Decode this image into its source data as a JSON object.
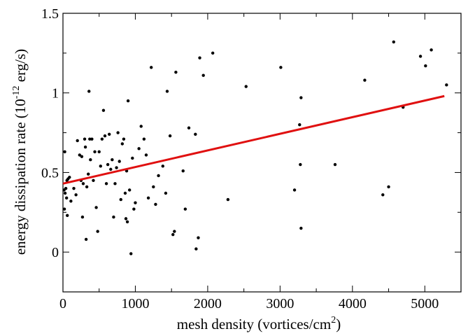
{
  "chart_data": {
    "type": "scatter",
    "title": "",
    "xlabel_prefix": "mesh density (vortices/cm",
    "xlabel_sup": "2",
    "xlabel_suffix": ")",
    "ylabel_prefix": "energy dissipation rate (10",
    "ylabel_sup": "-12",
    "ylabel_suffix": " erg/s)",
    "xlim": [
      0,
      5500
    ],
    "ylim": [
      -0.25,
      1.5
    ],
    "x_ticks": [
      0,
      1000,
      2000,
      3000,
      4000,
      5000
    ],
    "x_tick_labels": [
      "0",
      "1000",
      "2000",
      "3000",
      "4000",
      "5000"
    ],
    "y_ticks": [
      0,
      0.5,
      1,
      1.5
    ],
    "y_tick_labels": [
      "0",
      "0.5",
      "1",
      "1.5"
    ],
    "grid": false,
    "marker_color": "#000000",
    "fit_color": "#e01010",
    "fit_line": {
      "x": [
        0,
        5270
      ],
      "y": [
        0.43,
        0.98
      ]
    },
    "points": [
      {
        "x": 25,
        "y": 0.63
      },
      {
        "x": 15,
        "y": 0.39
      },
      {
        "x": 30,
        "y": 0.37
      },
      {
        "x": 40,
        "y": 0.4
      },
      {
        "x": 20,
        "y": 0.27
      },
      {
        "x": 55,
        "y": 0.45
      },
      {
        "x": 50,
        "y": 0.34
      },
      {
        "x": 60,
        "y": 0.23
      },
      {
        "x": 70,
        "y": 0.46
      },
      {
        "x": 90,
        "y": 0.47
      },
      {
        "x": 110,
        "y": 0.32
      },
      {
        "x": 150,
        "y": 0.4
      },
      {
        "x": 180,
        "y": 0.36
      },
      {
        "x": 200,
        "y": 0.7
      },
      {
        "x": 230,
        "y": 0.61
      },
      {
        "x": 250,
        "y": 0.45
      },
      {
        "x": 260,
        "y": 0.6
      },
      {
        "x": 270,
        "y": 0.22
      },
      {
        "x": 280,
        "y": 0.43
      },
      {
        "x": 300,
        "y": 0.71
      },
      {
        "x": 310,
        "y": 0.66
      },
      {
        "x": 320,
        "y": 0.08
      },
      {
        "x": 330,
        "y": 0.41
      },
      {
        "x": 350,
        "y": 0.49
      },
      {
        "x": 360,
        "y": 1.01
      },
      {
        "x": 370,
        "y": 0.71
      },
      {
        "x": 380,
        "y": 0.58
      },
      {
        "x": 400,
        "y": 0.71
      },
      {
        "x": 420,
        "y": 0.45
      },
      {
        "x": 440,
        "y": 0.63
      },
      {
        "x": 460,
        "y": 0.28
      },
      {
        "x": 480,
        "y": 0.13
      },
      {
        "x": 500,
        "y": 0.63
      },
      {
        "x": 520,
        "y": 0.54
      },
      {
        "x": 540,
        "y": 0.71
      },
      {
        "x": 560,
        "y": 0.89
      },
      {
        "x": 580,
        "y": 0.73
      },
      {
        "x": 600,
        "y": 0.43
      },
      {
        "x": 620,
        "y": 0.55
      },
      {
        "x": 640,
        "y": 0.74
      },
      {
        "x": 660,
        "y": 0.52
      },
      {
        "x": 680,
        "y": 0.58
      },
      {
        "x": 700,
        "y": 0.22
      },
      {
        "x": 720,
        "y": 0.43
      },
      {
        "x": 740,
        "y": 0.53
      },
      {
        "x": 760,
        "y": 0.75
      },
      {
        "x": 780,
        "y": 0.57
      },
      {
        "x": 800,
        "y": 0.33
      },
      {
        "x": 820,
        "y": 0.68
      },
      {
        "x": 840,
        "y": 0.71
      },
      {
        "x": 860,
        "y": 0.37
      },
      {
        "x": 870,
        "y": 0.21
      },
      {
        "x": 880,
        "y": 0.51
      },
      {
        "x": 890,
        "y": 0.19
      },
      {
        "x": 900,
        "y": 0.95
      },
      {
        "x": 920,
        "y": 0.39
      },
      {
        "x": 940,
        "y": -0.01
      },
      {
        "x": 960,
        "y": 0.59
      },
      {
        "x": 980,
        "y": 0.27
      },
      {
        "x": 1000,
        "y": 0.31
      },
      {
        "x": 1050,
        "y": 0.65
      },
      {
        "x": 1080,
        "y": 0.79
      },
      {
        "x": 1120,
        "y": 0.71
      },
      {
        "x": 1150,
        "y": 0.61
      },
      {
        "x": 1180,
        "y": 0.34
      },
      {
        "x": 1220,
        "y": 1.16
      },
      {
        "x": 1250,
        "y": 0.41
      },
      {
        "x": 1280,
        "y": 0.3
      },
      {
        "x": 1320,
        "y": 0.48
      },
      {
        "x": 1380,
        "y": 0.54
      },
      {
        "x": 1420,
        "y": 0.37
      },
      {
        "x": 1440,
        "y": 1.01
      },
      {
        "x": 1480,
        "y": 0.73
      },
      {
        "x": 1520,
        "y": 0.11
      },
      {
        "x": 1540,
        "y": 0.13
      },
      {
        "x": 1560,
        "y": 1.13
      },
      {
        "x": 1660,
        "y": 0.51
      },
      {
        "x": 1690,
        "y": 0.27
      },
      {
        "x": 1740,
        "y": 0.78
      },
      {
        "x": 1830,
        "y": 0.74
      },
      {
        "x": 1840,
        "y": 0.02
      },
      {
        "x": 1870,
        "y": 0.09
      },
      {
        "x": 1890,
        "y": 1.22
      },
      {
        "x": 1940,
        "y": 1.11
      },
      {
        "x": 2070,
        "y": 1.25
      },
      {
        "x": 2280,
        "y": 0.33
      },
      {
        "x": 2530,
        "y": 1.04
      },
      {
        "x": 3010,
        "y": 1.16
      },
      {
        "x": 3200,
        "y": 0.39
      },
      {
        "x": 3270,
        "y": 0.8
      },
      {
        "x": 3280,
        "y": 0.55
      },
      {
        "x": 3290,
        "y": 0.97
      },
      {
        "x": 3290,
        "y": 0.15
      },
      {
        "x": 3760,
        "y": 0.55
      },
      {
        "x": 4170,
        "y": 1.08
      },
      {
        "x": 4420,
        "y": 0.36
      },
      {
        "x": 4500,
        "y": 0.41
      },
      {
        "x": 4570,
        "y": 1.32
      },
      {
        "x": 4940,
        "y": 1.23
      },
      {
        "x": 5010,
        "y": 1.17
      },
      {
        "x": 5090,
        "y": 1.27
      },
      {
        "x": 4700,
        "y": 0.91
      },
      {
        "x": 5300,
        "y": 1.05
      }
    ]
  }
}
